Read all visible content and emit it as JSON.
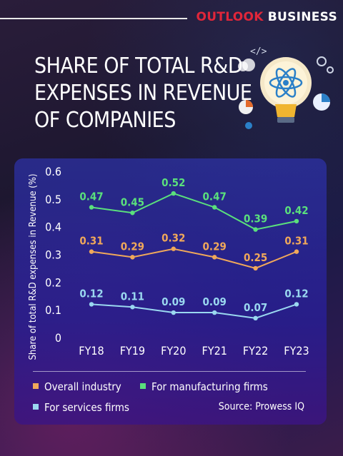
{
  "brand": {
    "part1": "OUTLOOK",
    "part2": "BUSINESS"
  },
  "title_lines": [
    "SHARE OF TOTAL R&D",
    "EXPENSES IN REVENUE",
    "OF COMPANIES"
  ],
  "source": "Source: Prowess IQ",
  "colors": {
    "overall": "#f0a85a",
    "manufacturing": "#5ae07c",
    "services": "#9ad8f0",
    "brand_red": "#e0263a"
  },
  "chart_data": {
    "type": "line",
    "ylabel": "Share of total R&D expenses in Revenue (%)",
    "xlabel": "",
    "categories": [
      "FY18",
      "FY19",
      "FY20",
      "FY21",
      "FY22",
      "FY23"
    ],
    "ylim": [
      0,
      0.6
    ],
    "yticks": [
      "0",
      "0.1",
      "0.2",
      "0.3",
      "0.4",
      "0.5",
      "0.6"
    ],
    "grid": false,
    "legend_position": "bottom",
    "series": [
      {
        "name": "Overall industry",
        "key": "overall",
        "values": [
          0.31,
          0.29,
          0.32,
          0.29,
          0.25,
          0.31
        ],
        "labels": [
          "0.31",
          "0.29",
          "0.32",
          "0.29",
          "0.25",
          "0.31"
        ]
      },
      {
        "name": "For manufacturing firms",
        "key": "manufacturing",
        "values": [
          0.47,
          0.45,
          0.52,
          0.47,
          0.39,
          0.42
        ],
        "labels": [
          "0.47",
          "0.45",
          "0.52",
          "0.47",
          "0.39",
          "0.42"
        ]
      },
      {
        "name": "For services firms",
        "key": "services",
        "values": [
          0.12,
          0.11,
          0.09,
          0.09,
          0.07,
          0.12
        ],
        "labels": [
          "0.12",
          "0.11",
          "0.09",
          "0.09",
          "0.07",
          "0.12"
        ]
      }
    ]
  }
}
